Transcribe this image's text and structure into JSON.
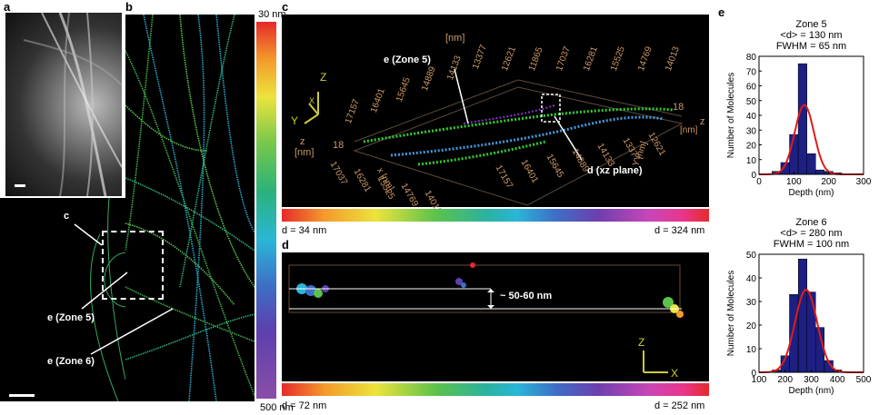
{
  "panels": {
    "a": {
      "label": "a"
    },
    "b": {
      "label": "b",
      "colorbar_top": "30 nm",
      "colorbar_bottom": "500 nm"
    },
    "c": {
      "label": "c",
      "zone5": "e (Zone 5)",
      "dplane": "d (xz plane)",
      "cbar_left": "d = 34 nm",
      "cbar_right": "d = 324 nm",
      "axis_y_label": "Y",
      "axis_z_label": "Z",
      "axis_x_label": "X",
      "z_label_left": "z",
      "z_unit_left": "[nm]",
      "z_value": "18",
      "y_unit": "[nm]",
      "y_ticks": [
        "12621",
        "11865",
        "17037",
        "16281",
        "15525",
        "14769",
        "14013"
      ],
      "y_ticks_back": [
        "17157",
        "16401",
        "15645",
        "14889",
        "14133",
        "13377"
      ],
      "x_ticks_front": [
        "17037",
        "16281",
        "15525",
        "14769",
        "14013"
      ],
      "x_ticks_mid": [
        "12621",
        "13377",
        "14133",
        "14889",
        "15645",
        "16401",
        "17157"
      ],
      "x_unit": "x [nm]",
      "z_label_right": "z",
      "z_unit_right": "[nm]",
      "z_value_right": "18",
      "y_right_label": "Y [nm]"
    },
    "d": {
      "label": "d",
      "annotation": "~ 50-60 nm",
      "cbar_left": "d = 72 nm",
      "cbar_right": "d = 252 nm",
      "axis_z": "Z",
      "axis_x": "X"
    },
    "e": {
      "label": "e"
    },
    "a_lower": {
      "c_label": "c",
      "zone5": "e (Zone 5)",
      "zone6": "e (Zone 6)"
    }
  },
  "chart_data": [
    {
      "type": "bar",
      "title": "Zone 5\n<d> = 130 nm\nFWHM = 65 nm",
      "title_lines": [
        "Zone 5",
        "<d> = 130 nm",
        "FWHM = 65 nm"
      ],
      "xlabel": "Depth (nm)",
      "ylabel": "Number of Molecules",
      "xlim": [
        0,
        300
      ],
      "ylim": [
        0,
        80
      ],
      "xticks": [
        0,
        100,
        200,
        300
      ],
      "yticks": [
        0,
        10,
        20,
        30,
        40,
        50,
        60,
        70,
        80
      ],
      "bin_width": 25,
      "bins": [
        50,
        75,
        100,
        125,
        150,
        175,
        200,
        225
      ],
      "values": [
        2,
        8,
        27,
        75,
        14,
        3,
        2,
        1
      ],
      "fit": {
        "type": "gaussian",
        "mean": 130,
        "fwhm": 65,
        "peak": 47
      },
      "bar_color": "#1d1f82",
      "fit_color": "#e01b1b"
    },
    {
      "type": "bar",
      "title": "Zone 6\n<d> = 280 nm\nFWHM = 100 nm",
      "title_lines": [
        "Zone 6",
        "<d> = 280 nm",
        "FWHM = 100 nm"
      ],
      "xlabel": "Depth (nm)",
      "ylabel": "Number of Molecules",
      "xlim": [
        100,
        500
      ],
      "ylim": [
        0,
        50
      ],
      "xticks": [
        100,
        200,
        300,
        400,
        500
      ],
      "yticks": [
        0,
        10,
        20,
        30,
        40,
        50
      ],
      "bin_width": 33,
      "bins": [
        167,
        200,
        233,
        267,
        300,
        333,
        367,
        400,
        433
      ],
      "values": [
        1,
        7,
        33,
        48,
        34,
        19,
        5,
        1,
        0
      ],
      "fit": {
        "type": "gaussian",
        "mean": 280,
        "fwhm": 100,
        "peak": 35
      },
      "bar_color": "#1d1f82",
      "fit_color": "#e01b1b"
    }
  ]
}
